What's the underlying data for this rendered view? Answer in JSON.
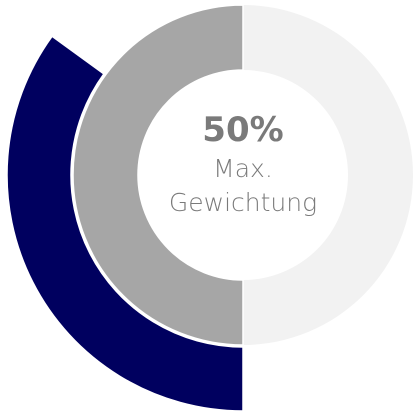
{
  "chart_data": {
    "type": "radial",
    "ylim": [
      0,
      100
    ],
    "series": [
      {
        "value": 50,
        "value_label": "50%",
        "color": "#a6a6a6",
        "track_color": "#f2f2f2"
      },
      {
        "value": 35,
        "color": "#00005f"
      }
    ],
    "label": "Max. Gewichtung"
  }
}
